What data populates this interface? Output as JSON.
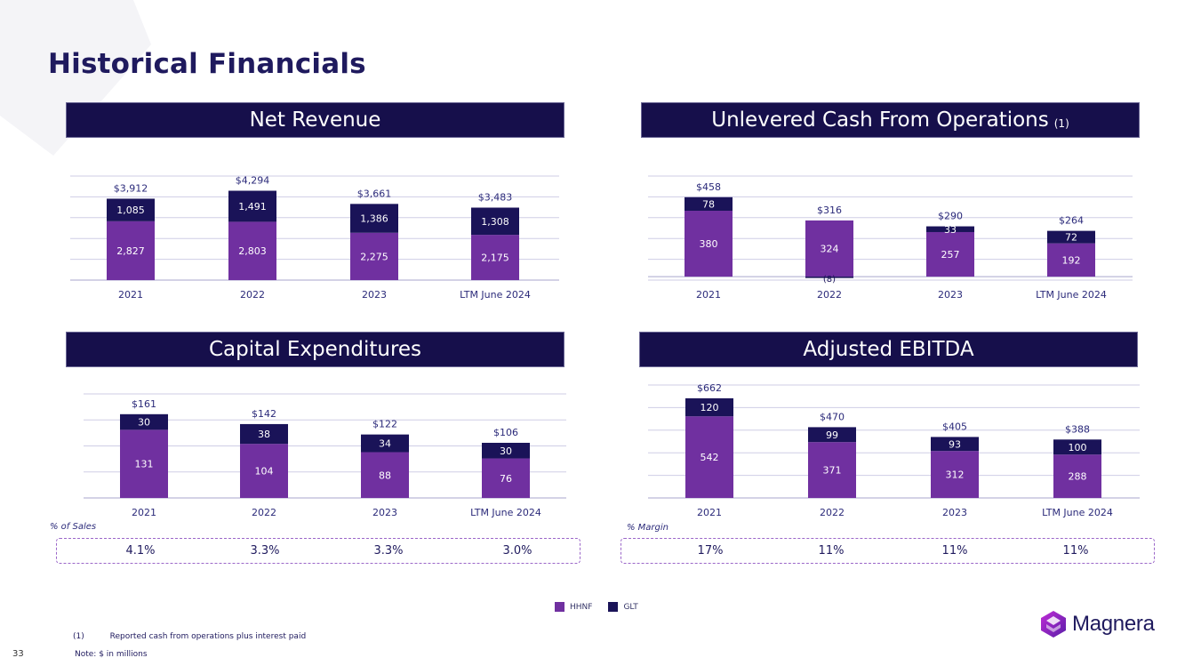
{
  "page": {
    "title": "Historical Financials",
    "page_number": "33",
    "footnote_marker": "(1)",
    "footnote_text": "Reported cash from operations plus interest paid",
    "note": "Note: $ in millions",
    "logo_text": "Magnera"
  },
  "colors": {
    "hhnf": "#7030a0",
    "glt": "#1a1358",
    "banner": "#160f4b",
    "title": "#1f1a5e"
  },
  "legend": {
    "hhnf": "HHNF",
    "glt": "GLT"
  },
  "ratios": {
    "capex": {
      "label": "% of Sales",
      "values": [
        "4.1%",
        "3.3%",
        "3.3%",
        "3.0%"
      ]
    },
    "ebitda": {
      "label": "% Margin",
      "values": [
        "17%",
        "11%",
        "11%",
        "11%"
      ]
    }
  },
  "chart_data": [
    {
      "id": "revenue",
      "type": "bar",
      "stacked": true,
      "title": "Net Revenue",
      "title_note": "",
      "categories": [
        "2021",
        "2022",
        "2023",
        "LTM June 2024"
      ],
      "series": [
        {
          "name": "HHNF",
          "values": [
            2827,
            2803,
            2275,
            2175
          ],
          "labels": [
            "2,827",
            "2,803",
            "2,275",
            "2,175"
          ]
        },
        {
          "name": "GLT",
          "values": [
            1085,
            1491,
            1386,
            1308
          ],
          "labels": [
            "1,085",
            "1,491",
            "1,386",
            "1,308"
          ]
        }
      ],
      "totals": [
        "$3,912",
        "$4,294",
        "$3,661",
        "$3,483"
      ],
      "ylim": [
        0,
        5000
      ],
      "gridlines": 6
    },
    {
      "id": "cashflow",
      "type": "bar",
      "stacked": true,
      "title": "Unlevered Cash From Operations",
      "title_note": "(1)",
      "categories": [
        "2021",
        "2022",
        "2023",
        "LTM June 2024"
      ],
      "series": [
        {
          "name": "HHNF",
          "values": [
            380,
            324,
            257,
            192
          ],
          "labels": [
            "380",
            "324",
            "257",
            "192"
          ]
        },
        {
          "name": "GLT",
          "values": [
            78,
            -8,
            33,
            72
          ],
          "labels": [
            "78",
            "(8)",
            "33",
            "72"
          ]
        }
      ],
      "totals": [
        "$458",
        "$316",
        "$290",
        "$264"
      ],
      "ylim": [
        -20,
        580
      ],
      "gridlines": 6
    },
    {
      "id": "capex",
      "type": "bar",
      "stacked": true,
      "title": "Capital Expenditures",
      "title_note": "",
      "categories": [
        "2021",
        "2022",
        "2023",
        "LTM June 2024"
      ],
      "series": [
        {
          "name": "HHNF",
          "values": [
            131,
            104,
            88,
            76
          ],
          "labels": [
            "131",
            "104",
            "88",
            "76"
          ]
        },
        {
          "name": "GLT",
          "values": [
            30,
            38,
            34,
            30
          ],
          "labels": [
            "30",
            "38",
            "34",
            "30"
          ]
        }
      ],
      "totals": [
        "$161",
        "$142",
        "$122",
        "$106"
      ],
      "ylim": [
        0,
        200
      ],
      "gridlines": 5
    },
    {
      "id": "ebitda",
      "type": "bar",
      "stacked": true,
      "title": "Adjusted EBITDA",
      "title_note": "",
      "categories": [
        "2021",
        "2022",
        "2023",
        "LTM June 2024"
      ],
      "series": [
        {
          "name": "HHNF",
          "values": [
            542,
            371,
            312,
            288
          ],
          "labels": [
            "542",
            "371",
            "312",
            "288"
          ]
        },
        {
          "name": "GLT",
          "values": [
            120,
            99,
            93,
            100
          ],
          "labels": [
            "120",
            "99",
            "93",
            "100"
          ]
        }
      ],
      "totals": [
        "$662",
        "$470",
        "$405",
        "$388"
      ],
      "ylim": [
        0,
        750
      ],
      "gridlines": 6
    }
  ]
}
